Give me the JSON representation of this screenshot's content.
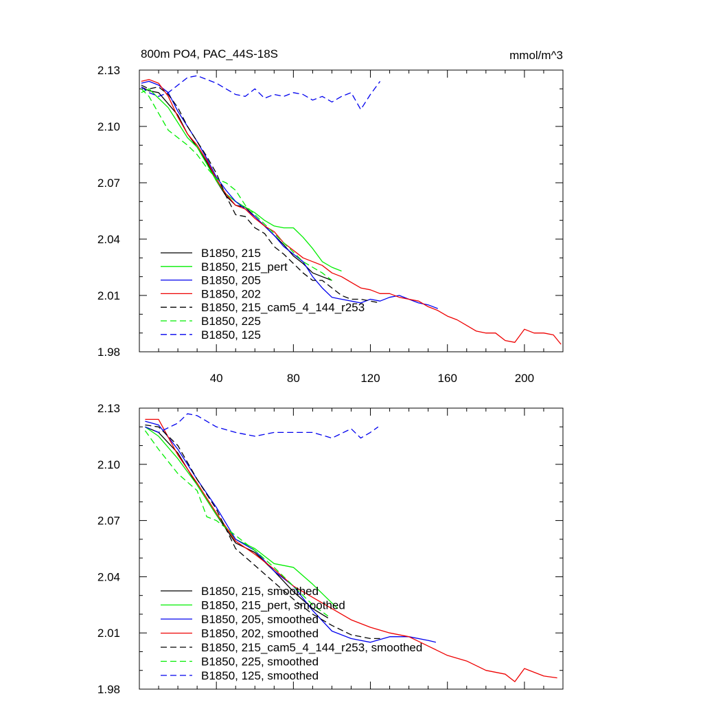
{
  "colors": {
    "black": "#000000",
    "green": "#00ee00",
    "blue": "#0000ee",
    "red": "#ee0000"
  },
  "chart_data": [
    {
      "type": "line",
      "title": "800m PO4, PAC_44S-18S",
      "units": "mmol/m^3",
      "xlim": [
        0,
        220
      ],
      "ylim": [
        1.98,
        2.13
      ],
      "xticks": [
        40,
        80,
        120,
        160,
        200
      ],
      "yticks": [
        1.98,
        2.01,
        2.04,
        2.07,
        2.1,
        2.13
      ],
      "ytick_labels": [
        "1.98",
        "2.01",
        "2.04",
        "2.07",
        "2.10",
        "2.13"
      ],
      "legend_position": "bottom-left",
      "series": [
        {
          "name": "B1850, 215",
          "color": "#000000",
          "dash": "solid",
          "x": [
            1,
            5,
            10,
            15,
            20,
            25,
            30,
            35,
            40,
            45,
            50,
            55,
            60,
            65,
            70,
            75,
            80,
            85,
            90,
            95,
            100
          ],
          "y": [
            2.121,
            2.119,
            2.118,
            2.112,
            2.106,
            2.096,
            2.089,
            2.081,
            2.071,
            2.063,
            2.058,
            2.057,
            2.052,
            2.047,
            2.042,
            2.037,
            2.031,
            2.027,
            2.022,
            2.02,
            2.018
          ]
        },
        {
          "name": "B1850, 215_pert",
          "color": "#00ee00",
          "dash": "solid",
          "x": [
            1,
            5,
            10,
            15,
            20,
            25,
            30,
            35,
            40,
            45,
            50,
            55,
            60,
            65,
            70,
            75,
            80,
            85,
            90,
            95,
            100,
            105
          ],
          "y": [
            2.118,
            2.12,
            2.115,
            2.11,
            2.102,
            2.094,
            2.089,
            2.08,
            2.071,
            2.064,
            2.06,
            2.057,
            2.054,
            2.05,
            2.047,
            2.046,
            2.046,
            2.041,
            2.035,
            2.028,
            2.025,
            2.023
          ]
        },
        {
          "name": "B1850, 205",
          "color": "#0000ee",
          "dash": "solid",
          "x": [
            1,
            5,
            10,
            15,
            20,
            25,
            30,
            35,
            40,
            45,
            50,
            55,
            60,
            65,
            70,
            75,
            80,
            85,
            90,
            95,
            100,
            105,
            110,
            115,
            120,
            125,
            130,
            135,
            140,
            145,
            150,
            155
          ],
          "y": [
            2.123,
            2.124,
            2.122,
            2.118,
            2.108,
            2.1,
            2.092,
            2.083,
            2.073,
            2.066,
            2.06,
            2.056,
            2.052,
            2.047,
            2.042,
            2.036,
            2.032,
            2.028,
            2.02,
            2.014,
            2.009,
            2.008,
            2.007,
            2.006,
            2.008,
            2.007,
            2.009,
            2.01,
            2.008,
            2.006,
            2.005,
            2.003
          ]
        },
        {
          "name": "B1850, 202",
          "color": "#ee0000",
          "dash": "solid",
          "x": [
            1,
            5,
            10,
            15,
            20,
            25,
            30,
            35,
            40,
            45,
            50,
            55,
            60,
            65,
            70,
            75,
            80,
            85,
            90,
            95,
            100,
            105,
            110,
            115,
            120,
            125,
            130,
            135,
            140,
            145,
            150,
            155,
            160,
            165,
            170,
            175,
            180,
            185,
            190,
            195,
            200,
            205,
            210,
            215,
            219
          ],
          "y": [
            2.124,
            2.125,
            2.123,
            2.116,
            2.105,
            2.096,
            2.09,
            2.082,
            2.072,
            2.064,
            2.058,
            2.056,
            2.051,
            2.047,
            2.044,
            2.038,
            2.034,
            2.03,
            2.028,
            2.026,
            2.022,
            2.02,
            2.017,
            2.014,
            2.013,
            2.011,
            2.011,
            2.009,
            2.008,
            2.007,
            2.004,
            2.002,
            1.999,
            1.997,
            1.994,
            1.991,
            1.99,
            1.99,
            1.986,
            1.985,
            1.992,
            1.99,
            1.99,
            1.989,
            1.984
          ]
        },
        {
          "name": "B1850, 215_cam5_4_144_r253",
          "color": "#000000",
          "dash": "dashed",
          "x": [
            1,
            5,
            10,
            15,
            20,
            25,
            30,
            35,
            40,
            45,
            50,
            55,
            60,
            65,
            70,
            75,
            80,
            85,
            90,
            95,
            100,
            105,
            110,
            115,
            120,
            125
          ],
          "y": [
            2.122,
            2.12,
            2.121,
            2.117,
            2.11,
            2.1,
            2.092,
            2.084,
            2.075,
            2.063,
            2.053,
            2.052,
            2.046,
            2.043,
            2.036,
            2.032,
            2.027,
            2.022,
            2.018,
            2.018,
            2.014,
            2.01,
            2.008,
            2.008,
            2.007,
            2.006
          ]
        },
        {
          "name": "B1850, 225",
          "color": "#00ee00",
          "dash": "dashed",
          "x": [
            1,
            5,
            10,
            15,
            20,
            25,
            30,
            35,
            40,
            45,
            50,
            55,
            60,
            65,
            70,
            75,
            80,
            85,
            90,
            95,
            100
          ],
          "y": [
            2.12,
            2.116,
            2.107,
            2.098,
            2.094,
            2.09,
            2.085,
            2.078,
            2.072,
            2.07,
            2.066,
            2.058,
            2.053,
            2.048,
            2.043,
            2.038,
            2.033,
            2.028,
            2.025,
            2.022,
            2.018
          ]
        },
        {
          "name": "B1850, 125",
          "color": "#0000ee",
          "dash": "dashed",
          "x": [
            1,
            5,
            10,
            15,
            20,
            25,
            30,
            35,
            40,
            45,
            50,
            55,
            60,
            65,
            70,
            75,
            80,
            85,
            90,
            95,
            100,
            105,
            110,
            115,
            120,
            125
          ],
          "y": [
            2.121,
            2.118,
            2.116,
            2.118,
            2.122,
            2.126,
            2.127,
            2.125,
            2.123,
            2.12,
            2.117,
            2.116,
            2.12,
            2.115,
            2.117,
            2.116,
            2.118,
            2.117,
            2.114,
            2.116,
            2.113,
            2.116,
            2.118,
            2.109,
            2.117,
            2.124
          ]
        }
      ]
    },
    {
      "type": "line",
      "xlim": [
        0,
        220
      ],
      "ylim": [
        1.98,
        2.13
      ],
      "xticks": [
        40,
        80,
        120,
        160,
        200
      ],
      "yticks": [
        1.98,
        2.01,
        2.04,
        2.07,
        2.1,
        2.13
      ],
      "ytick_labels": [
        "1.98",
        "2.01",
        "2.04",
        "2.07",
        "2.10",
        "2.13"
      ],
      "legend_position": "bottom-left",
      "series": [
        {
          "name": "B1850, 215, smoothed",
          "color": "#000000",
          "dash": "solid",
          "x": [
            3,
            10,
            20,
            30,
            40,
            50,
            60,
            70,
            80,
            90,
            98
          ],
          "y": [
            2.12,
            2.117,
            2.106,
            2.089,
            2.073,
            2.058,
            2.053,
            2.043,
            2.032,
            2.023,
            2.018
          ]
        },
        {
          "name": "B1850, 215_pert, smoothed",
          "color": "#00ee00",
          "dash": "solid",
          "x": [
            3,
            10,
            20,
            30,
            40,
            50,
            60,
            70,
            80,
            90,
            103
          ],
          "y": [
            2.12,
            2.115,
            2.103,
            2.089,
            2.073,
            2.06,
            2.055,
            2.047,
            2.045,
            2.036,
            2.023
          ]
        },
        {
          "name": "B1850, 205, smoothed",
          "color": "#0000ee",
          "dash": "solid",
          "x": [
            3,
            10,
            20,
            30,
            40,
            50,
            60,
            70,
            80,
            90,
            100,
            110,
            120,
            130,
            140,
            150,
            154
          ],
          "y": [
            2.123,
            2.121,
            2.108,
            2.092,
            2.077,
            2.06,
            2.054,
            2.043,
            2.035,
            2.022,
            2.011,
            2.007,
            2.005,
            2.008,
            2.008,
            2.006,
            2.005
          ]
        },
        {
          "name": "B1850, 202, smoothed",
          "color": "#ee0000",
          "dash": "solid",
          "x": [
            3,
            10,
            20,
            30,
            40,
            50,
            60,
            70,
            80,
            90,
            100,
            110,
            120,
            130,
            140,
            150,
            160,
            170,
            180,
            190,
            195,
            200,
            210,
            217
          ],
          "y": [
            2.124,
            2.124,
            2.105,
            2.09,
            2.074,
            2.059,
            2.052,
            2.044,
            2.035,
            2.029,
            2.023,
            2.017,
            2.013,
            2.01,
            2.008,
            2.003,
            1.998,
            1.995,
            1.99,
            1.988,
            1.984,
            1.991,
            1.987,
            1.986
          ]
        },
        {
          "name": "B1850, 215_cam5_4_144_r253, smoothed",
          "color": "#000000",
          "dash": "dashed",
          "x": [
            3,
            10,
            20,
            30,
            40,
            50,
            60,
            70,
            80,
            90,
            100,
            110,
            120,
            125
          ],
          "y": [
            2.121,
            2.12,
            2.11,
            2.092,
            2.076,
            2.055,
            2.046,
            2.037,
            2.028,
            2.02,
            2.014,
            2.009,
            2.007,
            2.007
          ]
        },
        {
          "name": "B1850, 225, smoothed",
          "color": "#00ee00",
          "dash": "dashed",
          "x": [
            3,
            10,
            20,
            30,
            35,
            40,
            50,
            60,
            70,
            80,
            90,
            98
          ],
          "y": [
            2.118,
            2.108,
            2.095,
            2.086,
            2.072,
            2.07,
            2.062,
            2.054,
            2.045,
            2.035,
            2.025,
            2.019
          ]
        },
        {
          "name": "B1850, 125, smoothed",
          "color": "#0000ee",
          "dash": "dashed",
          "x": [
            3,
            10,
            20,
            25,
            30,
            40,
            50,
            60,
            70,
            80,
            90,
            100,
            110,
            115,
            120,
            124
          ],
          "y": [
            2.12,
            2.117,
            2.122,
            2.127,
            2.126,
            2.12,
            2.117,
            2.115,
            2.117,
            2.117,
            2.117,
            2.114,
            2.119,
            2.114,
            2.117,
            2.12
          ]
        }
      ]
    }
  ]
}
